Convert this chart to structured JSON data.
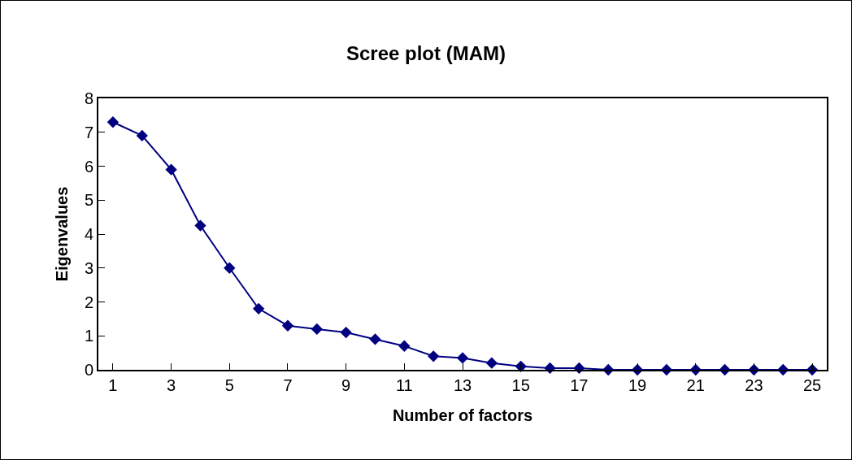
{
  "chart_data": {
    "type": "line",
    "title": "Scree plot (MAM)",
    "xlabel": "Number of factors",
    "ylabel": "Eigenvalues",
    "x": [
      1,
      2,
      3,
      4,
      5,
      6,
      7,
      8,
      9,
      10,
      11,
      12,
      13,
      14,
      15,
      16,
      17,
      18,
      19,
      20,
      21,
      22,
      23,
      24,
      25
    ],
    "series": [
      {
        "color": "#000080",
        "values": [
          7.3,
          6.9,
          5.9,
          4.25,
          3.0,
          1.8,
          1.3,
          1.2,
          1.1,
          0.9,
          0.7,
          0.4,
          0.35,
          0.2,
          0.1,
          0.05,
          0.05,
          0,
          0,
          0,
          0,
          0,
          0,
          0,
          0
        ]
      }
    ],
    "xlim": [
      0.5,
      25.5
    ],
    "xticks": [
      1,
      3,
      5,
      7,
      9,
      11,
      13,
      15,
      17,
      19,
      21,
      23,
      25
    ],
    "ylim": [
      0,
      8
    ],
    "yticks": [
      0,
      1,
      2,
      3,
      4,
      5,
      6,
      7,
      8
    ],
    "grid": false,
    "legend": false,
    "marker": "diamond",
    "line_style": "solid"
  }
}
